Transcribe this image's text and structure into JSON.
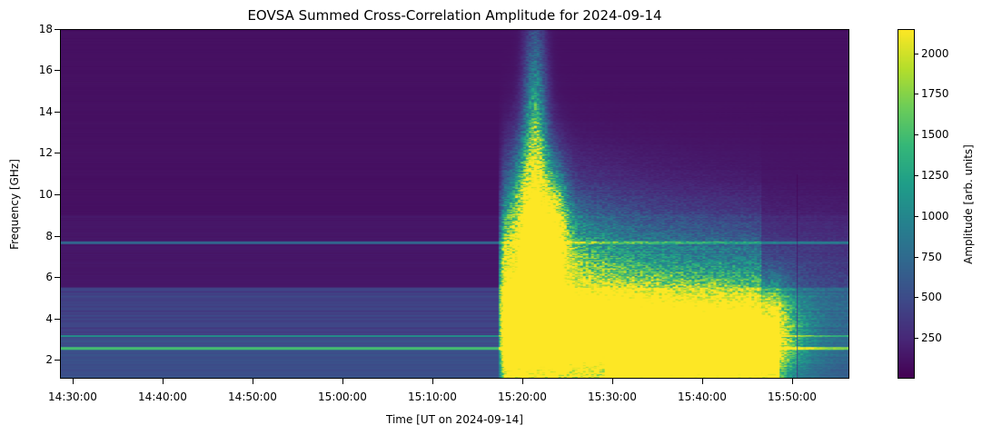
{
  "chart_data": {
    "type": "heatmap",
    "title": "EOVSA Summed Cross-Correlation Amplitude for 2024-09-14",
    "xlabel": "Time [UT on 2024-09-14]",
    "ylabel": "Frequency [GHz]",
    "x_range": [
      "14:28:50",
      "15:56:40"
    ],
    "x_ticks": [
      "14:30:00",
      "14:40:00",
      "14:50:00",
      "15:00:00",
      "15:10:00",
      "15:20:00",
      "15:30:00",
      "15:40:00",
      "15:50:00"
    ],
    "y_range": [
      1.1,
      18
    ],
    "y_ticks": [
      2,
      4,
      6,
      8,
      10,
      12,
      14,
      16,
      18
    ],
    "colormap": "viridis",
    "colorbar": {
      "label": "Amplitude [arb. units]",
      "range": [
        0,
        2150
      ],
      "ticks": [
        250,
        500,
        750,
        1000,
        1250,
        1500,
        1750,
        2000
      ]
    },
    "features": [
      {
        "description": "quiet background",
        "time_range": [
          "14:28:50",
          "15:17:30"
        ],
        "freq_range": [
          6,
          18
        ],
        "amplitude": 60
      },
      {
        "description": "low-frequency background",
        "time_range": [
          "14:28:50",
          "15:17:30"
        ],
        "freq_range": [
          1.1,
          5.5
        ],
        "amplitude": 500
      },
      {
        "description": "narrow emission line",
        "time_range": [
          "14:28:50",
          "15:17:30"
        ],
        "freq_range": [
          2.4,
          2.6
        ],
        "amplitude": 1600
      },
      {
        "description": "flare onset",
        "time_range": [
          "15:17:30",
          "15:19:00"
        ],
        "freq_range": [
          1.1,
          9
        ],
        "amplitude": 1800
      },
      {
        "description": "flare peak",
        "time_range": [
          "15:20:00",
          "15:25:00"
        ],
        "freq_range": [
          5,
          11
        ],
        "amplitude": 2100
      },
      {
        "description": "flare decay",
        "time_range": [
          "15:30:00",
          "15:48:00"
        ],
        "freq_range": [
          1.1,
          5
        ],
        "amplitude": 2150
      }
    ]
  }
}
